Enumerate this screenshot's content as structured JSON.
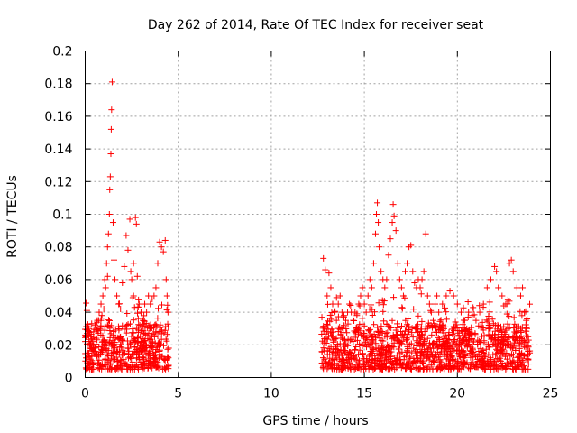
{
  "chart_data": {
    "type": "scatter",
    "title": "Day 262 of 2014, Rate Of TEC Index for receiver seat",
    "xlabel": "GPS time / hours",
    "ylabel": "ROTI / TECUs",
    "xlim": [
      0,
      25
    ],
    "ylim": [
      0,
      0.2
    ],
    "xticks": [
      "0",
      "5",
      "10",
      "15",
      "20",
      "25"
    ],
    "xtick_values": [
      0,
      5,
      10,
      15,
      20,
      25
    ],
    "yticks": [
      "0",
      "0.02",
      "0.04",
      "0.06",
      "0.08",
      "0.1",
      "0.12",
      "0.14",
      "0.16",
      "0.18",
      "0.2"
    ],
    "ytick_values": [
      0,
      0.02,
      0.04,
      0.06,
      0.08,
      0.1,
      0.12,
      0.14,
      0.16,
      0.18,
      0.2
    ],
    "grid": true,
    "marker": "plus",
    "color": "#ff0000",
    "series": [
      {
        "name": "ROTI",
        "points": [
          [
            0.05,
            0.012
          ],
          [
            0.1,
            0.02
          ],
          [
            0.15,
            0.015
          ],
          [
            0.2,
            0.03
          ],
          [
            0.25,
            0.018
          ],
          [
            0.3,
            0.025
          ],
          [
            0.35,
            0.033
          ],
          [
            0.4,
            0.022
          ],
          [
            0.45,
            0.028
          ],
          [
            0.5,
            0.016
          ],
          [
            0.55,
            0.031
          ],
          [
            0.6,
            0.024
          ],
          [
            0.65,
            0.035
          ],
          [
            0.7,
            0.027
          ],
          [
            0.75,
            0.04
          ],
          [
            0.8,
            0.03
          ],
          [
            0.85,
            0.045
          ],
          [
            0.9,
            0.038
          ],
          [
            0.95,
            0.05
          ],
          [
            1.0,
            0.042
          ],
          [
            1.05,
            0.06
          ],
          [
            1.1,
            0.055
          ],
          [
            1.15,
            0.07
          ],
          [
            1.2,
            0.08
          ],
          [
            1.25,
            0.088
          ],
          [
            1.3,
            0.1
          ],
          [
            1.32,
            0.115
          ],
          [
            1.35,
            0.123
          ],
          [
            1.38,
            0.137
          ],
          [
            1.4,
            0.152
          ],
          [
            1.42,
            0.164
          ],
          [
            1.45,
            0.181
          ],
          [
            1.5,
            0.095
          ],
          [
            1.55,
            0.072
          ],
          [
            1.6,
            0.06
          ],
          [
            1.7,
            0.05
          ],
          [
            1.8,
            0.045
          ],
          [
            1.9,
            0.042
          ],
          [
            2.0,
            0.058
          ],
          [
            2.1,
            0.068
          ],
          [
            2.2,
            0.087
          ],
          [
            2.3,
            0.078
          ],
          [
            2.4,
            0.097
          ],
          [
            2.45,
            0.065
          ],
          [
            2.5,
            0.06
          ],
          [
            2.6,
            0.07
          ],
          [
            2.7,
            0.098
          ],
          [
            2.75,
            0.094
          ],
          [
            2.8,
            0.062
          ],
          [
            2.9,
            0.045
          ],
          [
            3.0,
            0.04
          ],
          [
            3.1,
            0.035
          ],
          [
            3.2,
            0.045
          ],
          [
            3.3,
            0.04
          ],
          [
            3.4,
            0.05
          ],
          [
            3.5,
            0.045
          ],
          [
            3.6,
            0.048
          ],
          [
            3.7,
            0.05
          ],
          [
            3.8,
            0.055
          ],
          [
            3.9,
            0.07
          ],
          [
            4.0,
            0.083
          ],
          [
            4.1,
            0.08
          ],
          [
            4.2,
            0.077
          ],
          [
            4.3,
            0.084
          ],
          [
            4.35,
            0.06
          ],
          [
            4.4,
            0.05
          ],
          [
            4.45,
            0.04
          ],
          [
            1.2,
            0.062
          ],
          [
            2.6,
            0.05
          ],
          [
            3.5,
            0.03
          ],
          [
            12.8,
            0.073
          ],
          [
            12.9,
            0.066
          ],
          [
            13.0,
            0.05
          ],
          [
            13.1,
            0.064
          ],
          [
            13.2,
            0.055
          ],
          [
            13.3,
            0.045
          ],
          [
            13.4,
            0.04
          ],
          [
            13.5,
            0.035
          ],
          [
            13.6,
            0.045
          ],
          [
            13.7,
            0.05
          ],
          [
            13.8,
            0.04
          ],
          [
            13.9,
            0.038
          ],
          [
            14.0,
            0.035
          ],
          [
            14.1,
            0.04
          ],
          [
            14.2,
            0.045
          ],
          [
            14.3,
            0.04
          ],
          [
            14.4,
            0.035
          ],
          [
            14.5,
            0.04
          ],
          [
            14.6,
            0.038
          ],
          [
            14.7,
            0.045
          ],
          [
            14.8,
            0.05
          ],
          [
            14.9,
            0.055
          ],
          [
            15.0,
            0.045
          ],
          [
            15.1,
            0.04
          ],
          [
            15.2,
            0.05
          ],
          [
            15.3,
            0.06
          ],
          [
            15.4,
            0.055
          ],
          [
            15.5,
            0.07
          ],
          [
            15.6,
            0.088
          ],
          [
            15.65,
            0.1
          ],
          [
            15.7,
            0.107
          ],
          [
            15.75,
            0.095
          ],
          [
            15.8,
            0.08
          ],
          [
            15.9,
            0.065
          ],
          [
            16.0,
            0.06
          ],
          [
            16.1,
            0.055
          ],
          [
            16.2,
            0.06
          ],
          [
            16.3,
            0.075
          ],
          [
            16.4,
            0.085
          ],
          [
            16.5,
            0.095
          ],
          [
            16.55,
            0.106
          ],
          [
            16.6,
            0.099
          ],
          [
            16.7,
            0.09
          ],
          [
            16.8,
            0.07
          ],
          [
            16.9,
            0.06
          ],
          [
            17.0,
            0.055
          ],
          [
            17.1,
            0.05
          ],
          [
            17.2,
            0.065
          ],
          [
            17.3,
            0.07
          ],
          [
            17.4,
            0.08
          ],
          [
            17.5,
            0.081
          ],
          [
            17.6,
            0.065
          ],
          [
            17.7,
            0.058
          ],
          [
            17.8,
            0.055
          ],
          [
            17.9,
            0.06
          ],
          [
            18.0,
            0.055
          ],
          [
            18.1,
            0.06
          ],
          [
            18.2,
            0.065
          ],
          [
            18.3,
            0.088
          ],
          [
            18.4,
            0.05
          ],
          [
            18.5,
            0.045
          ],
          [
            18.6,
            0.04
          ],
          [
            18.7,
            0.035
          ],
          [
            18.8,
            0.045
          ],
          [
            18.9,
            0.05
          ],
          [
            19.0,
            0.04
          ],
          [
            19.2,
            0.045
          ],
          [
            19.4,
            0.05
          ],
          [
            19.6,
            0.053
          ],
          [
            19.8,
            0.05
          ],
          [
            20.0,
            0.045
          ],
          [
            20.2,
            0.04
          ],
          [
            20.4,
            0.035
          ],
          [
            20.6,
            0.04
          ],
          [
            20.8,
            0.038
          ],
          [
            21.0,
            0.035
          ],
          [
            21.2,
            0.04
          ],
          [
            21.4,
            0.045
          ],
          [
            21.6,
            0.055
          ],
          [
            21.8,
            0.06
          ],
          [
            22.0,
            0.068
          ],
          [
            22.1,
            0.065
          ],
          [
            22.2,
            0.055
          ],
          [
            22.4,
            0.05
          ],
          [
            22.6,
            0.045
          ],
          [
            22.8,
            0.07
          ],
          [
            22.9,
            0.072
          ],
          [
            23.0,
            0.065
          ],
          [
            23.2,
            0.055
          ],
          [
            23.4,
            0.05
          ],
          [
            23.5,
            0.055
          ],
          [
            23.6,
            0.04
          ],
          [
            23.7,
            0.035
          ],
          [
            23.8,
            0.025
          ]
        ],
        "noise_note": "Dense baseline of points between 0.005 and 0.03 over 0-4.5 h and 12.7-23.9 h"
      }
    ]
  }
}
